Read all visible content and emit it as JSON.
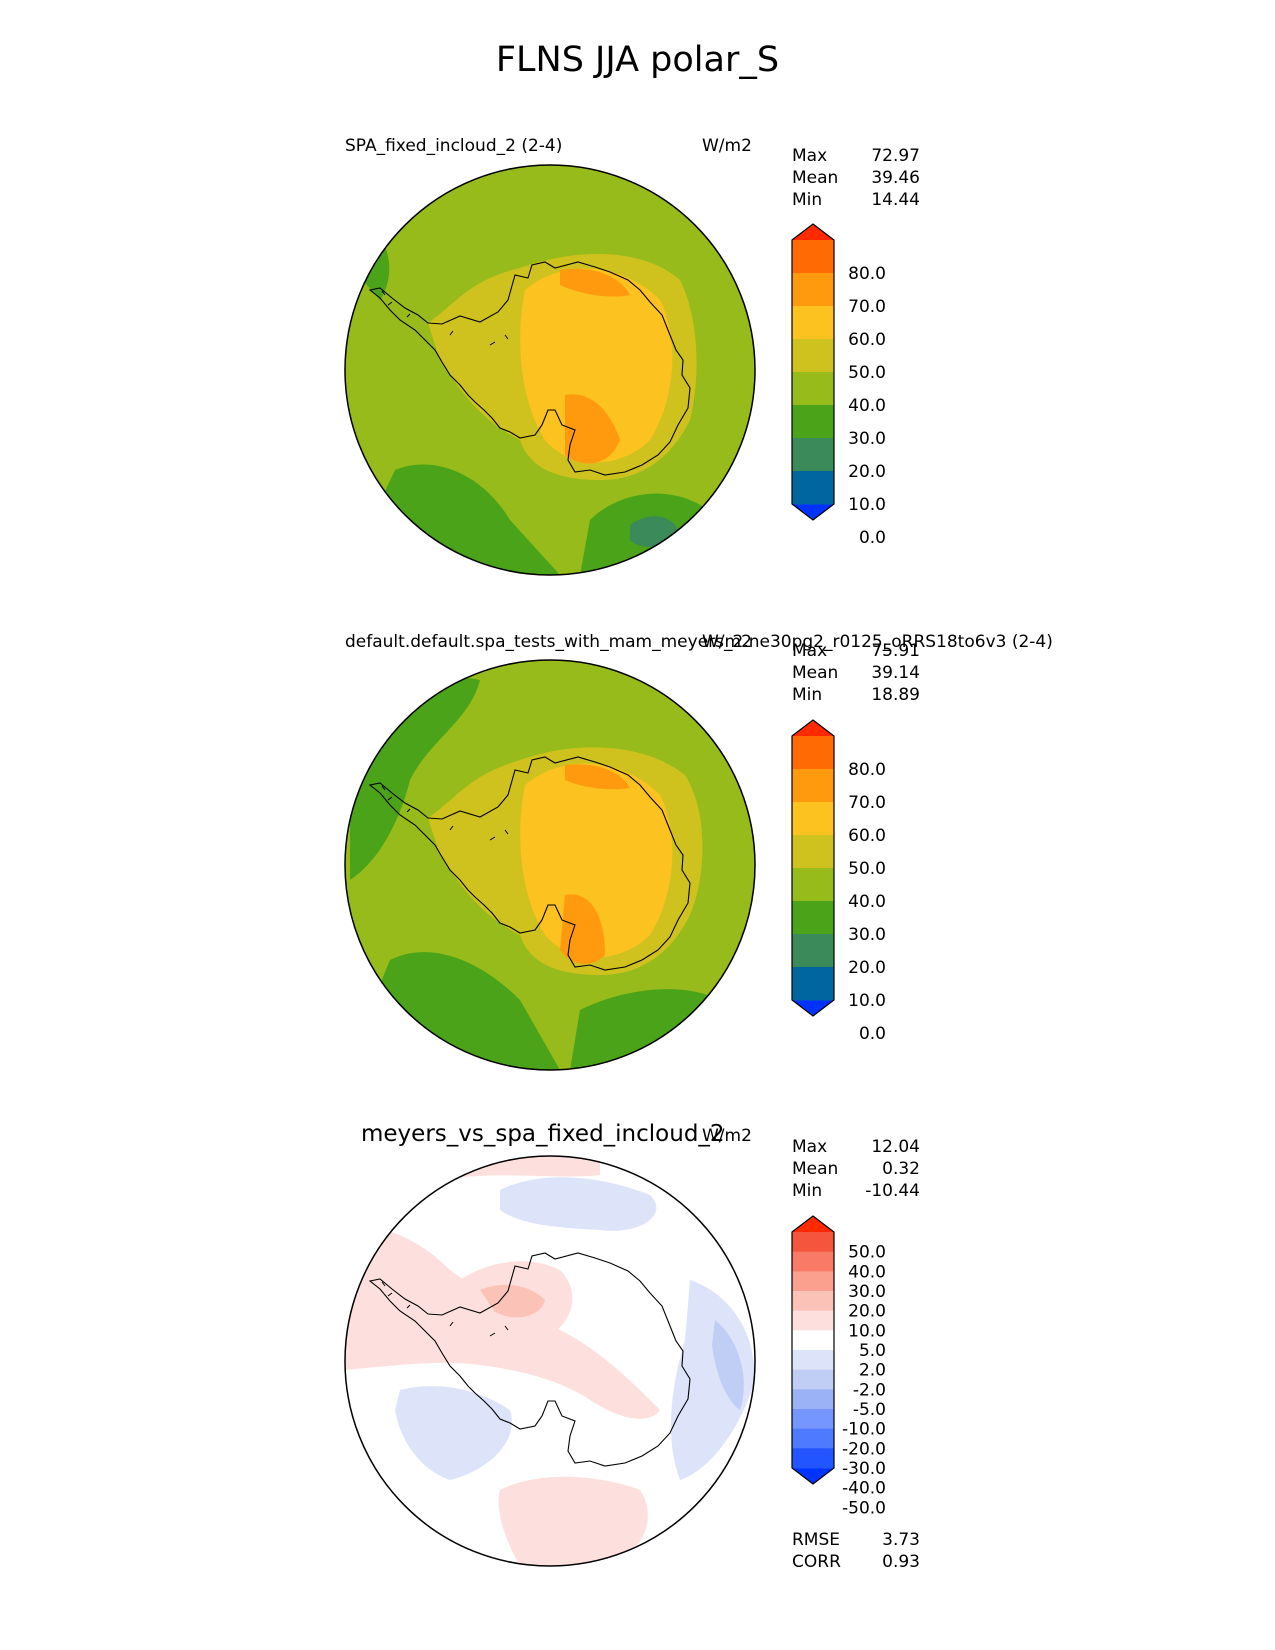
{
  "title": "FLNS JJA polar_S",
  "colors": {
    "test_levels": [
      "#0033ff",
      "#0066a0",
      "#3a8a5a",
      "#4aa318",
      "#96bb1a",
      "#cfc21e",
      "#fcc21f",
      "#ff9a0f",
      "#ff6a05",
      "#ff2a00"
    ],
    "diff_levels": [
      "#0033ff",
      "#2255ff",
      "#4d7aff",
      "#7596ff",
      "#9cb2f6",
      "#c0cdf5",
      "#dde4fa",
      "#ffffff",
      "#fde0dd",
      "#fbc2b8",
      "#fb9f8f",
      "#f97a66",
      "#f4553c",
      "#ff2a00"
    ]
  },
  "panels": [
    {
      "id": "test",
      "title": "SPA_fixed_incloud_2 (2-4)",
      "units": "W/m2",
      "stats": [
        {
          "label": "Max",
          "value": "72.97"
        },
        {
          "label": "Mean",
          "value": "39.46"
        },
        {
          "label": "Min",
          "value": "14.44"
        }
      ],
      "colorbar_ticks": [
        "80.0",
        "70.0",
        "60.0",
        "50.0",
        "40.0",
        "30.0",
        "20.0",
        "10.0",
        "0.0"
      ]
    },
    {
      "id": "reference",
      "title": "default.default.spa_tests_with_mam_meyers_2.ne30pg2_r0125_oRRS18to6v3 (2-4)",
      "units": "W/m2",
      "stats": [
        {
          "label": "Max",
          "value": "75.91"
        },
        {
          "label": "Mean",
          "value": "39.14"
        },
        {
          "label": "Min",
          "value": "18.89"
        }
      ],
      "colorbar_ticks": [
        "80.0",
        "70.0",
        "60.0",
        "50.0",
        "40.0",
        "30.0",
        "20.0",
        "10.0",
        "0.0"
      ]
    },
    {
      "id": "diff",
      "title": "meyers_vs_spa_fixed_incloud_2",
      "units": "W/m2",
      "stats": [
        {
          "label": "Max",
          "value": "12.04"
        },
        {
          "label": "Mean",
          "value": "0.32"
        },
        {
          "label": "Min",
          "value": "-10.44"
        }
      ],
      "colorbar_ticks": [
        "50.0",
        "40.0",
        "30.0",
        "20.0",
        "10.0",
        "5.0",
        "2.0",
        "-2.0",
        "-5.0",
        "-10.0",
        "-20.0",
        "-30.0",
        "-40.0",
        "-50.0"
      ],
      "extra_stats": [
        {
          "label": "RMSE",
          "value": "3.73"
        },
        {
          "label": "CORR",
          "value": "0.93"
        }
      ]
    }
  ]
}
